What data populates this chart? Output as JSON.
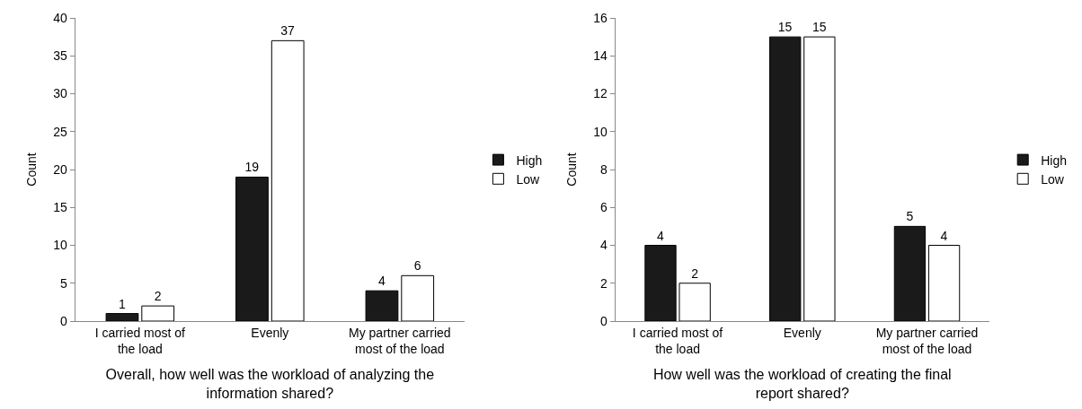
{
  "chart_data": [
    {
      "type": "bar",
      "xlabel": "Overall, how well was the workload of analyzing the information shared?",
      "ylabel": "Count",
      "categories": [
        "I carried most of the load",
        "Evenly",
        "My partner carried most of the load"
      ],
      "series": [
        {
          "name": "High",
          "color": "#1a1a1a",
          "values": [
            1,
            19,
            4
          ]
        },
        {
          "name": "Low",
          "color": "#ffffff",
          "values": [
            2,
            37,
            6
          ]
        }
      ],
      "ylim": [
        0,
        40
      ],
      "yticks": [
        0,
        5,
        10,
        15,
        20,
        25,
        30,
        35,
        40
      ],
      "data_labels": true,
      "legend": "right"
    },
    {
      "type": "bar",
      "xlabel": "How well was the workload of creating the final report shared?",
      "ylabel": "Count",
      "categories": [
        "I carried most of the load",
        "Evenly",
        "My partner carried most of the load"
      ],
      "series": [
        {
          "name": "High",
          "color": "#1a1a1a",
          "values": [
            4,
            15,
            5
          ]
        },
        {
          "name": "Low",
          "color": "#ffffff",
          "values": [
            2,
            15,
            4
          ]
        }
      ],
      "ylim": [
        0,
        16
      ],
      "yticks": [
        0,
        2,
        4,
        6,
        8,
        10,
        12,
        14,
        16
      ],
      "data_labels": true,
      "legend": "right"
    }
  ]
}
